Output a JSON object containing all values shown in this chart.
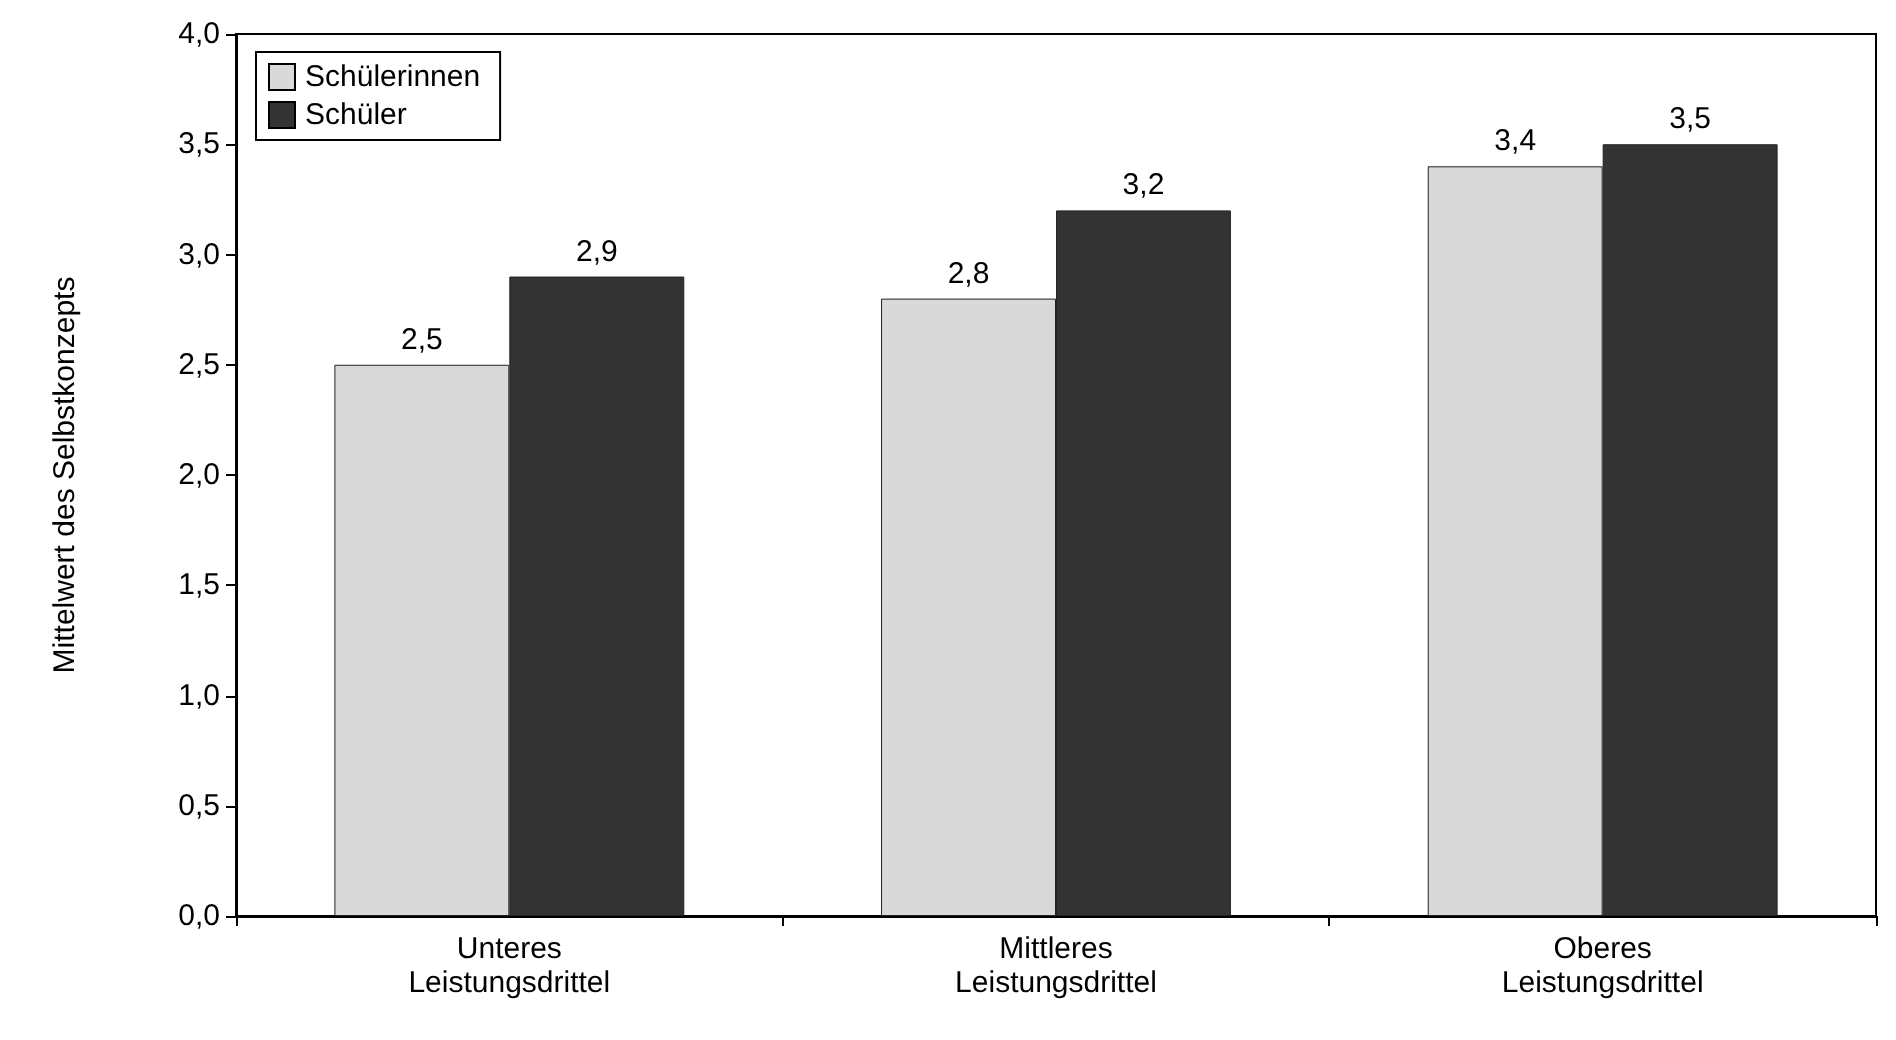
{
  "chart_data": {
    "type": "bar",
    "ylabel": "Mittelwert des Selbstkonzepts",
    "categories": [
      "Unteres\nLeistungsdrittel",
      "Mittleres\nLeistungsdrittel",
      "Oberes\nLeistungsdrittel"
    ],
    "series": [
      {
        "name": "Schülerinnen",
        "color": "#d9d9d9",
        "values": [
          2.5,
          2.8,
          3.4
        ],
        "value_labels": [
          "2,5",
          "2,8",
          "3,4"
        ]
      },
      {
        "name": "Schüler",
        "color": "#333333",
        "values": [
          2.9,
          3.2,
          3.5
        ],
        "value_labels": [
          "2,9",
          "3,2",
          "3,5"
        ]
      }
    ],
    "ylim": [
      0,
      4
    ],
    "yticks": [
      {
        "value": 0,
        "label": "0,0"
      },
      {
        "value": 0.5,
        "label": "0,5"
      },
      {
        "value": 1,
        "label": "1,0"
      },
      {
        "value": 1.5,
        "label": "1,5"
      },
      {
        "value": 2,
        "label": "2,0"
      },
      {
        "value": 2.5,
        "label": "2,5"
      },
      {
        "value": 3,
        "label": "3,0"
      },
      {
        "value": 3.5,
        "label": "3,5"
      },
      {
        "value": 4,
        "label": "4,0"
      }
    ],
    "grid": false,
    "legend": "top left"
  }
}
